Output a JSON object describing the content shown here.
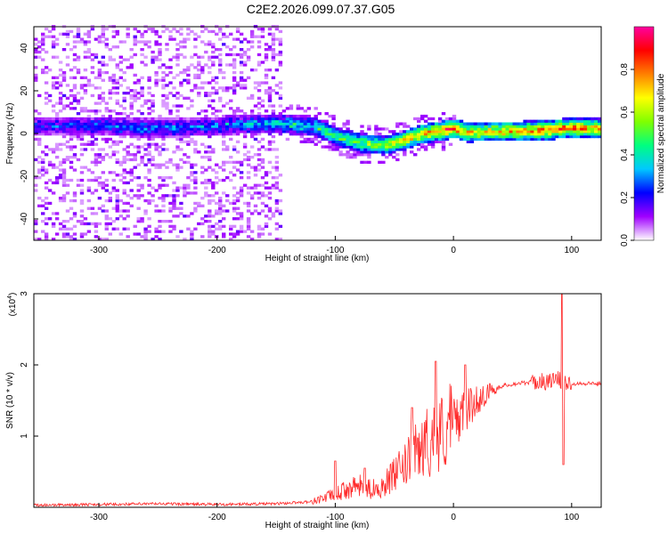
{
  "title": "C2E2.2026.099.07.37.G05",
  "chart_data": [
    {
      "type": "heatmap",
      "title": "C2E2.2026.099.07.37.G05",
      "xlabel": "Height of straight line (km)",
      "ylabel": "Frequency (Hz)",
      "xlim": [
        -355,
        125
      ],
      "ylim": [
        -50,
        50
      ],
      "xticks": [
        -300,
        -200,
        -100,
        0,
        100
      ],
      "yticks": [
        -40,
        -20,
        0,
        20,
        40
      ],
      "colorbar": {
        "label": "Normalized spectral amplitude",
        "range": [
          0,
          1
        ],
        "ticks": [
          "0.0",
          "0.2",
          "0.4",
          "0.6",
          "0.8"
        ],
        "colors": [
          "#ffffff",
          "#a000ff",
          "#0000ff",
          "#00c8ff",
          "#00ff80",
          "#80ff00",
          "#ffff00",
          "#ff8000",
          "#ff0000",
          "#ff00a0"
        ]
      },
      "ridge": {
        "x": [
          -340,
          -300,
          -250,
          -200,
          -175,
          -150,
          -120,
          -100,
          -80,
          -60,
          -45,
          -30,
          -10,
          0,
          10,
          40,
          80,
          90,
          125
        ],
        "freq": [
          3,
          3,
          2,
          3,
          4,
          4,
          3,
          -2,
          -5,
          -6,
          -4,
          -1,
          1,
          2,
          0,
          0.5,
          1,
          2,
          2
        ],
        "amplitude": [
          0.25,
          0.3,
          0.3,
          0.3,
          0.35,
          0.4,
          0.45,
          0.5,
          0.55,
          0.6,
          0.65,
          0.75,
          0.85,
          0.85,
          0.7,
          0.75,
          0.8,
          0.8,
          0.75
        ]
      },
      "noise_region_x": [
        -355,
        -145
      ]
    },
    {
      "type": "line",
      "xlabel": "Height of straight line (km)",
      "ylabel": "SNR (10 * v/v)",
      "yscale_label": "(x10",
      "yscale_exp": "4",
      "yscale_close": ")",
      "xlim": [
        -355,
        125
      ],
      "ylim": [
        0,
        3
      ],
      "xticks": [
        -300,
        -200,
        -100,
        0,
        100
      ],
      "yticks": [
        1,
        2,
        3
      ],
      "series": [
        {
          "color": "#ff2a2a",
          "x": [
            -355,
            -300,
            -250,
            -200,
            -150,
            -120,
            -100,
            -90,
            -80,
            -70,
            -60,
            -50,
            -40,
            -30,
            -20,
            -10,
            0,
            10,
            20,
            30,
            40,
            50,
            60,
            70,
            80,
            85,
            90,
            92,
            95,
            100,
            110,
            125
          ],
          "y": [
            0.03,
            0.04,
            0.05,
            0.04,
            0.05,
            0.08,
            0.18,
            0.25,
            0.3,
            0.25,
            0.3,
            0.45,
            0.6,
            0.8,
            0.95,
            1.05,
            1.2,
            1.35,
            1.5,
            1.62,
            1.7,
            1.73,
            1.75,
            1.76,
            1.77,
            1.78,
            1.8,
            1.75,
            1.75,
            1.74,
            1.74,
            1.74
          ],
          "spikes": [
            {
              "x": -100,
              "y": 0.65
            },
            {
              "x": -75,
              "y": 0.55
            },
            {
              "x": -35,
              "y": 1.4
            },
            {
              "x": -15,
              "y": 2.05
            },
            {
              "x": 10,
              "y": 2.0
            },
            {
              "x": 92,
              "y": 3.0
            },
            {
              "x": 93,
              "y": 0.6
            }
          ]
        }
      ]
    }
  ]
}
